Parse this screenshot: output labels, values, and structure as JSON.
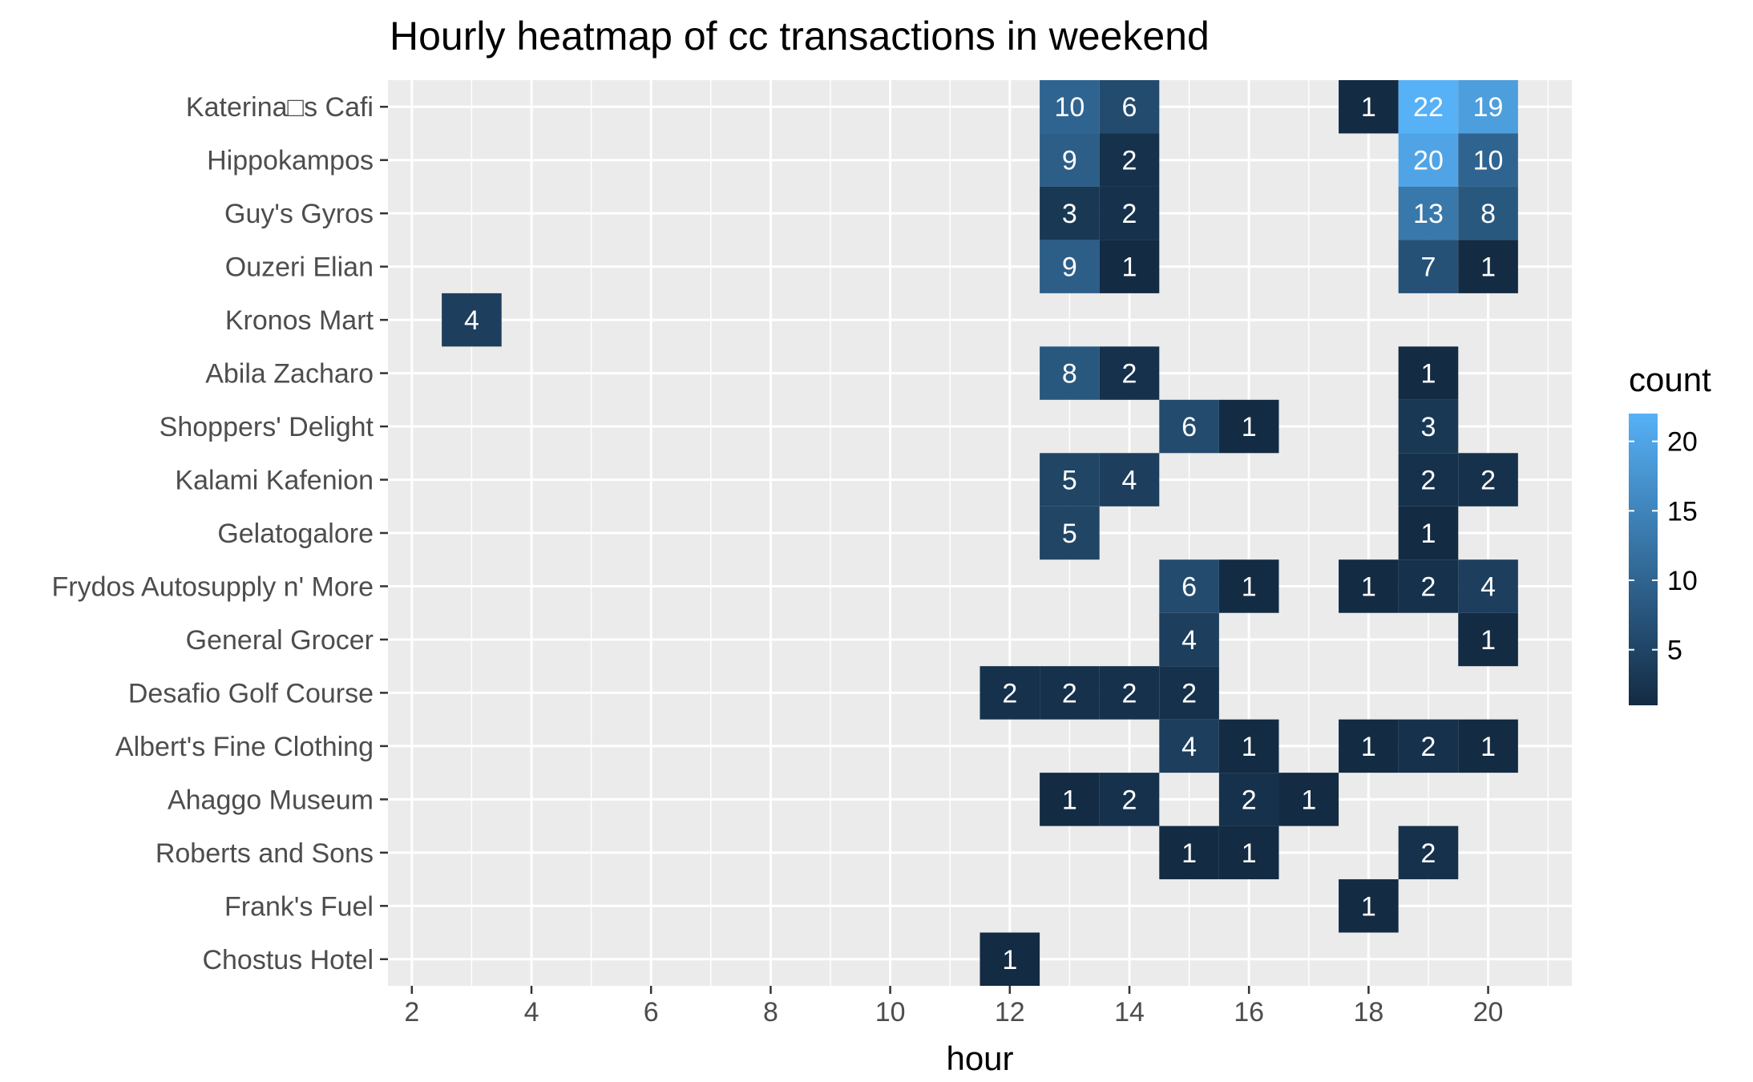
{
  "chart_data": {
    "type": "heatmap",
    "title": "Hourly heatmap of cc transactions in weekend",
    "xlabel": "hour",
    "ylabel": "",
    "x_ticks": [
      2,
      4,
      6,
      8,
      10,
      12,
      14,
      16,
      18,
      20
    ],
    "xlim": [
      1.6,
      21.4
    ],
    "categories": [
      "Katerina□s Cafi",
      "Hippokampos",
      "Guy's Gyros",
      "Ouzeri Elian",
      "Kronos Mart",
      "Abila Zacharo",
      "Shoppers' Delight",
      "Kalami Kafenion",
      "Gelatogalore",
      "Frydos Autosupply n' More",
      "General Grocer",
      "Desafio Golf Course",
      "Albert's Fine Clothing",
      "Ahaggo Museum",
      "Roberts and Sons",
      "Frank's Fuel",
      "Chostus Hotel"
    ],
    "cells": [
      {
        "y": "Katerina□s Cafi",
        "x": 13,
        "count": 10
      },
      {
        "y": "Katerina□s Cafi",
        "x": 14,
        "count": 6
      },
      {
        "y": "Katerina□s Cafi",
        "x": 18,
        "count": 1
      },
      {
        "y": "Katerina□s Cafi",
        "x": 19,
        "count": 22
      },
      {
        "y": "Katerina□s Cafi",
        "x": 20,
        "count": 19
      },
      {
        "y": "Hippokampos",
        "x": 13,
        "count": 9
      },
      {
        "y": "Hippokampos",
        "x": 14,
        "count": 2
      },
      {
        "y": "Hippokampos",
        "x": 19,
        "count": 20
      },
      {
        "y": "Hippokampos",
        "x": 20,
        "count": 10
      },
      {
        "y": "Guy's Gyros",
        "x": 13,
        "count": 3
      },
      {
        "y": "Guy's Gyros",
        "x": 14,
        "count": 2
      },
      {
        "y": "Guy's Gyros",
        "x": 19,
        "count": 13
      },
      {
        "y": "Guy's Gyros",
        "x": 20,
        "count": 8
      },
      {
        "y": "Ouzeri Elian",
        "x": 13,
        "count": 9
      },
      {
        "y": "Ouzeri Elian",
        "x": 14,
        "count": 1
      },
      {
        "y": "Ouzeri Elian",
        "x": 19,
        "count": 7
      },
      {
        "y": "Ouzeri Elian",
        "x": 20,
        "count": 1
      },
      {
        "y": "Kronos Mart",
        "x": 3,
        "count": 4
      },
      {
        "y": "Abila Zacharo",
        "x": 13,
        "count": 8
      },
      {
        "y": "Abila Zacharo",
        "x": 14,
        "count": 2
      },
      {
        "y": "Abila Zacharo",
        "x": 19,
        "count": 1
      },
      {
        "y": "Shoppers' Delight",
        "x": 15,
        "count": 6
      },
      {
        "y": "Shoppers' Delight",
        "x": 16,
        "count": 1
      },
      {
        "y": "Shoppers' Delight",
        "x": 19,
        "count": 3
      },
      {
        "y": "Kalami Kafenion",
        "x": 13,
        "count": 5
      },
      {
        "y": "Kalami Kafenion",
        "x": 14,
        "count": 4
      },
      {
        "y": "Kalami Kafenion",
        "x": 19,
        "count": 2
      },
      {
        "y": "Kalami Kafenion",
        "x": 20,
        "count": 2
      },
      {
        "y": "Gelatogalore",
        "x": 13,
        "count": 5
      },
      {
        "y": "Gelatogalore",
        "x": 19,
        "count": 1
      },
      {
        "y": "Frydos Autosupply n' More",
        "x": 15,
        "count": 6
      },
      {
        "y": "Frydos Autosupply n' More",
        "x": 16,
        "count": 1
      },
      {
        "y": "Frydos Autosupply n' More",
        "x": 18,
        "count": 1
      },
      {
        "y": "Frydos Autosupply n' More",
        "x": 19,
        "count": 2
      },
      {
        "y": "Frydos Autosupply n' More",
        "x": 20,
        "count": 4
      },
      {
        "y": "General Grocer",
        "x": 15,
        "count": 4
      },
      {
        "y": "General Grocer",
        "x": 20,
        "count": 1
      },
      {
        "y": "Desafio Golf Course",
        "x": 12,
        "count": 2
      },
      {
        "y": "Desafio Golf Course",
        "x": 13,
        "count": 2
      },
      {
        "y": "Desafio Golf Course",
        "x": 14,
        "count": 2
      },
      {
        "y": "Desafio Golf Course",
        "x": 15,
        "count": 2
      },
      {
        "y": "Albert's Fine Clothing",
        "x": 15,
        "count": 4
      },
      {
        "y": "Albert's Fine Clothing",
        "x": 16,
        "count": 1
      },
      {
        "y": "Albert's Fine Clothing",
        "x": 18,
        "count": 1
      },
      {
        "y": "Albert's Fine Clothing",
        "x": 19,
        "count": 2
      },
      {
        "y": "Albert's Fine Clothing",
        "x": 20,
        "count": 1
      },
      {
        "y": "Ahaggo Museum",
        "x": 13,
        "count": 1
      },
      {
        "y": "Ahaggo Museum",
        "x": 14,
        "count": 2
      },
      {
        "y": "Ahaggo Museum",
        "x": 16,
        "count": 2
      },
      {
        "y": "Ahaggo Museum",
        "x": 17,
        "count": 1
      },
      {
        "y": "Roberts and Sons",
        "x": 15,
        "count": 1
      },
      {
        "y": "Roberts and Sons",
        "x": 16,
        "count": 1
      },
      {
        "y": "Roberts and Sons",
        "x": 19,
        "count": 2
      },
      {
        "y": "Frank's Fuel",
        "x": 18,
        "count": 1
      },
      {
        "y": "Chostus Hotel",
        "x": 12,
        "count": 1
      }
    ],
    "legend": {
      "title": "count",
      "ticks": [
        5,
        10,
        15,
        20
      ],
      "range": [
        1,
        22
      ],
      "low_color": "#132B43",
      "high_color": "#56B1F7"
    },
    "grid": true,
    "panel_background": "#ebebeb",
    "legend_position": "right"
  }
}
